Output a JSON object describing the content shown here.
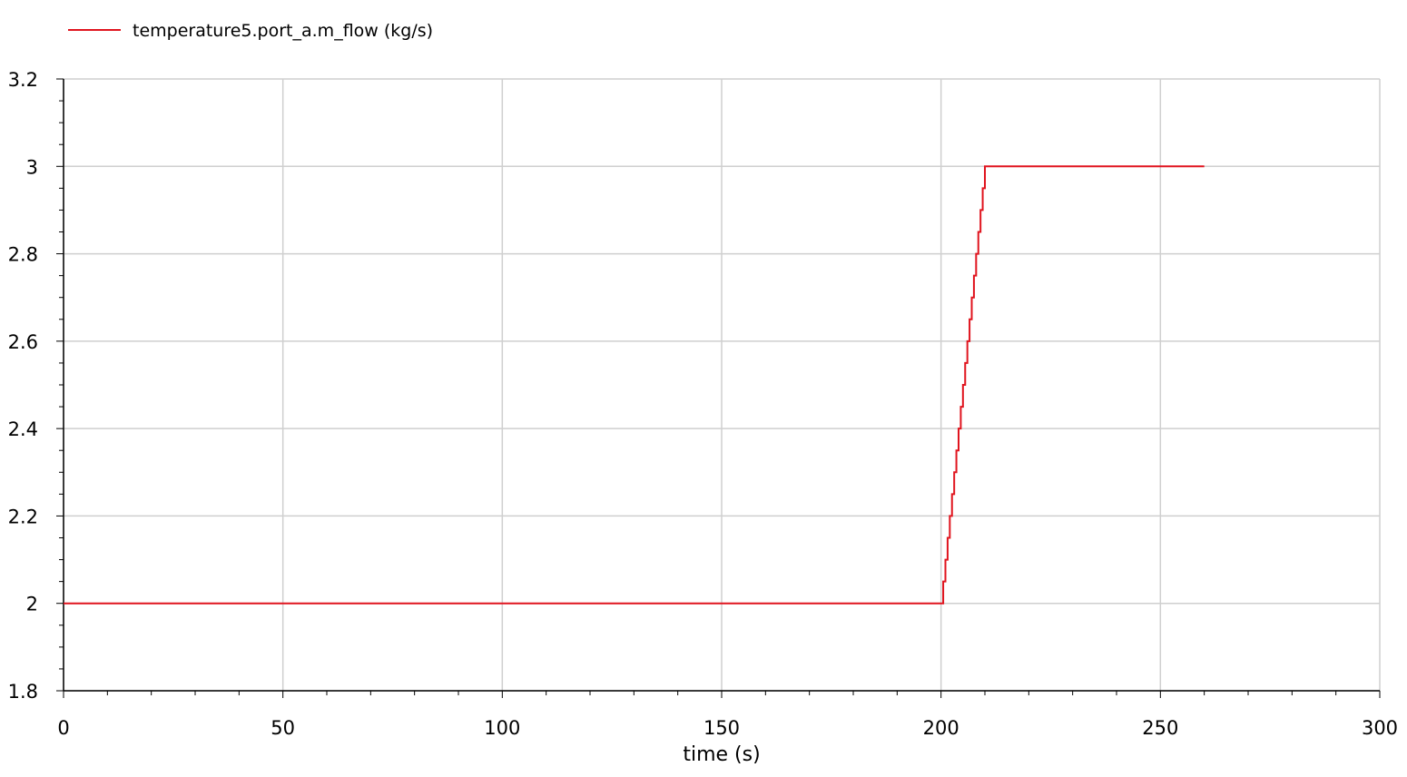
{
  "chart_data": {
    "type": "line",
    "xlabel": "time (s)",
    "ylabel": "",
    "xlim": [
      0,
      300
    ],
    "ylim": [
      1.8,
      3.2
    ],
    "xticks": [
      0,
      50,
      100,
      150,
      200,
      250,
      300
    ],
    "xtick_labels": [
      "0",
      "50",
      "100",
      "150",
      "200",
      "250",
      "300"
    ],
    "yticks": [
      1.8,
      2.0,
      2.2,
      2.4,
      2.6,
      2.8,
      3.0,
      3.2
    ],
    "ytick_labels": [
      "1.8",
      "2",
      "2.2",
      "2.4",
      "2.6",
      "2.8",
      "3",
      "3.2"
    ],
    "grid": true,
    "legend_position": "top-left",
    "series": [
      {
        "name": "temperature5.port_a.m_flow (kg/s)",
        "color": "#e0141e",
        "x": [
          0,
          200,
          210,
          260
        ],
        "y": [
          2.0,
          2.0,
          3.0,
          3.0
        ]
      }
    ]
  }
}
